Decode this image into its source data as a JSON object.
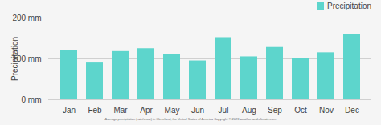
{
  "chart_data": {
    "type": "bar",
    "categories": [
      "Jan",
      "Feb",
      "Mar",
      "Apr",
      "May",
      "Jun",
      "Jul",
      "Aug",
      "Sep",
      "Oct",
      "Nov",
      "Dec"
    ],
    "series": [
      {
        "name": "Precipitation",
        "color": "#5dd5cc",
        "values": [
          120,
          90,
          118,
          125,
          110,
          95,
          152,
          105,
          128,
          100,
          115,
          160
        ]
      }
    ],
    "ylabel": "Precipitation",
    "ylim": [
      0,
      200
    ],
    "yticks": [
      {
        "value": 0,
        "label": "0 mm"
      },
      {
        "value": 100,
        "label": "100 mm"
      },
      {
        "value": 200,
        "label": "200 mm"
      }
    ],
    "grid": true,
    "legend": "upper right",
    "caption": "Average precipitation (rain/snow) in Cleveland, the United States of America   Copyright © 2023  weather-and-climate.com"
  }
}
